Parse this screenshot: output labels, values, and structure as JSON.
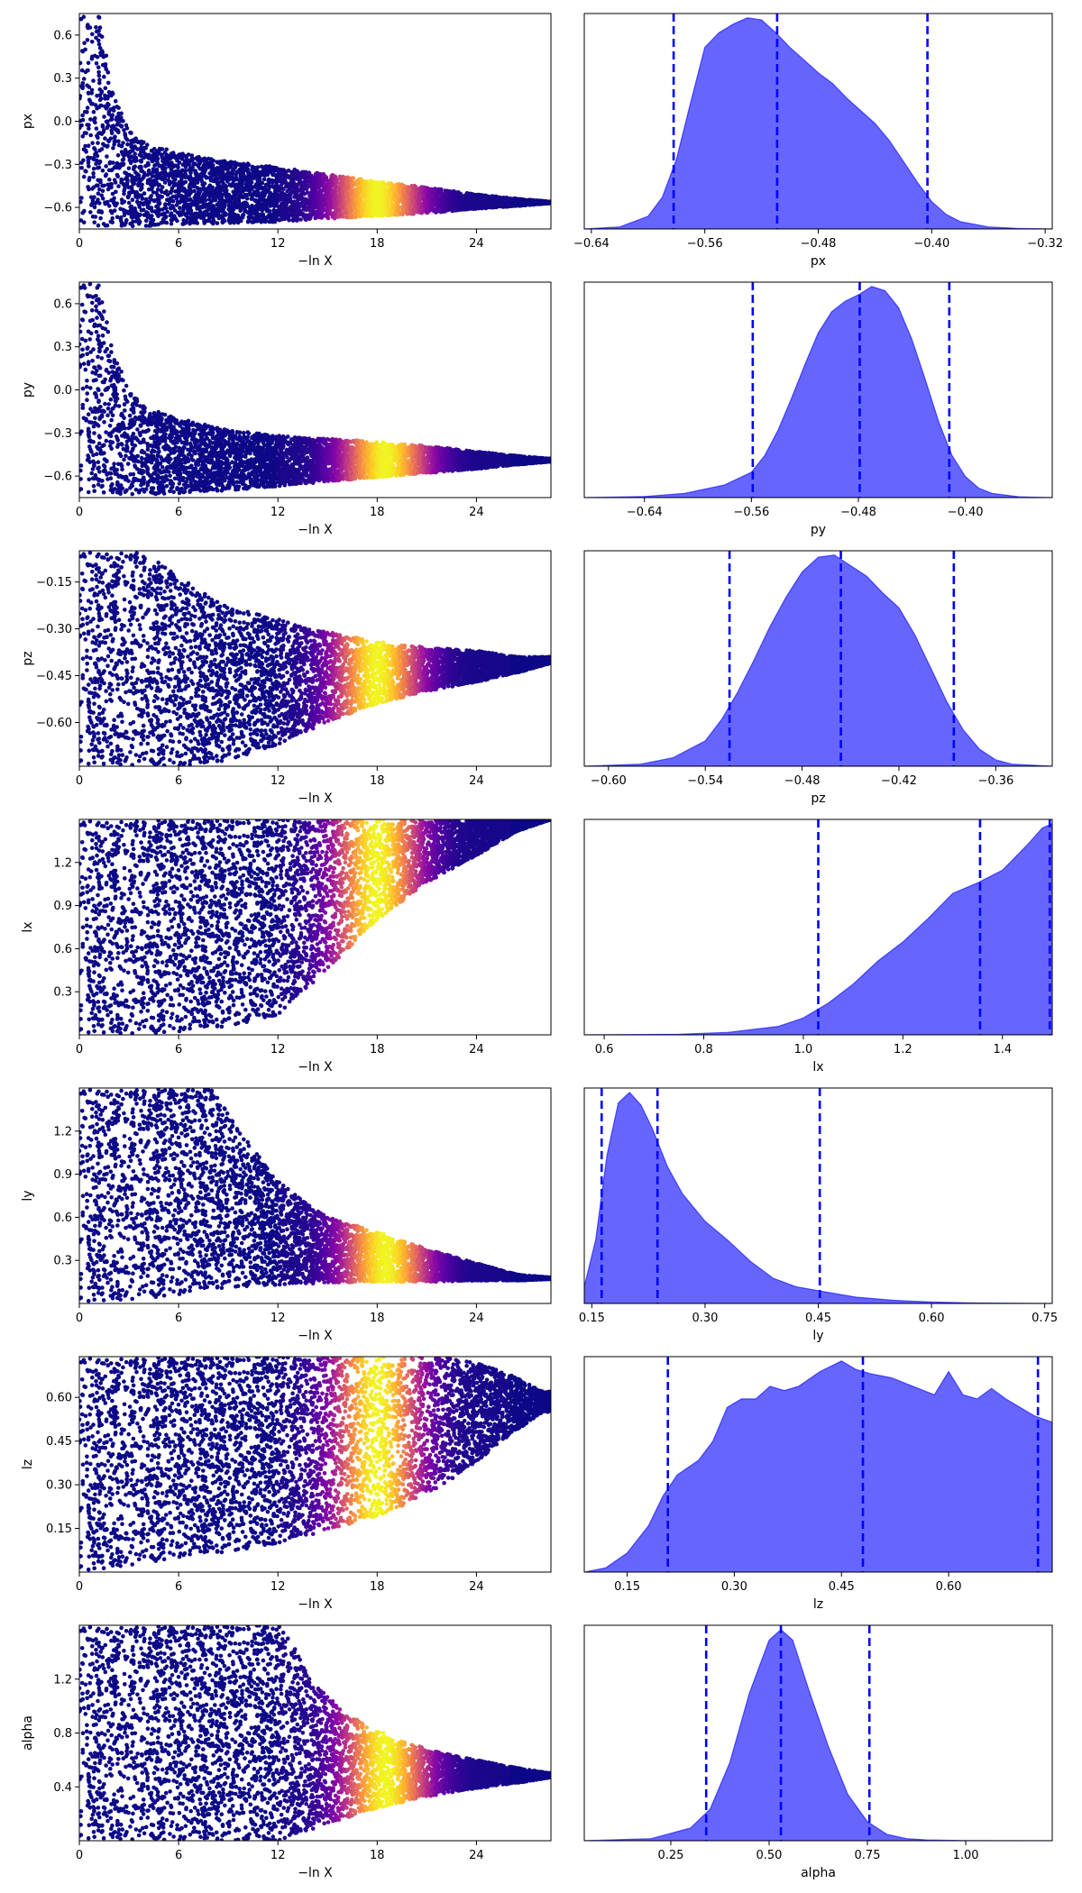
{
  "chart_data": [
    {
      "type": "scatter",
      "ylabel": "px",
      "xlabel": "−ln X",
      "xlim": [
        0,
        28.5
      ],
      "xticks": [
        "0",
        "6",
        "12",
        "18",
        "24"
      ],
      "xtick_values": [
        0,
        6,
        12,
        18,
        24
      ],
      "ylim": [
        -0.75,
        0.75
      ],
      "yticks": [
        "0.6",
        "0.3",
        "0.0",
        "−0.3",
        "−0.6"
      ],
      "ytick_values": [
        0.6,
        0.3,
        0.0,
        -0.3,
        -0.6
      ],
      "envelope": {
        "x": [
          0,
          0.6,
          1.2,
          2,
          3,
          4,
          6,
          9,
          12,
          15,
          18,
          21,
          24,
          26.5,
          28.5
        ],
        "upper": [
          0.75,
          0.75,
          0.75,
          0.2,
          -0.05,
          -0.15,
          -0.22,
          -0.28,
          -0.32,
          -0.37,
          -0.42,
          -0.46,
          -0.51,
          -0.54,
          -0.56
        ],
        "lower": [
          -0.73,
          -0.73,
          -0.73,
          -0.73,
          -0.73,
          -0.73,
          -0.72,
          -0.71,
          -0.7,
          -0.68,
          -0.66,
          -0.64,
          -0.61,
          -0.59,
          -0.57
        ]
      },
      "color_peak_x": 18,
      "colormap": "plasma"
    },
    {
      "type": "area",
      "xlabel": "px",
      "xlim": [
        -0.645,
        -0.315
      ],
      "xticks": [
        "−0.64",
        "−0.56",
        "−0.48",
        "−0.40",
        "−0.32"
      ],
      "xtick_values": [
        -0.64,
        -0.56,
        -0.48,
        -0.4,
        -0.32
      ],
      "quantiles": [
        -0.582,
        -0.509,
        -0.403
      ],
      "density": {
        "x": [
          -0.645,
          -0.62,
          -0.6,
          -0.59,
          -0.58,
          -0.57,
          -0.56,
          -0.55,
          -0.54,
          -0.53,
          -0.52,
          -0.51,
          -0.5,
          -0.49,
          -0.48,
          -0.47,
          -0.46,
          -0.45,
          -0.44,
          -0.43,
          -0.42,
          -0.41,
          -0.4,
          -0.39,
          -0.38,
          -0.36,
          -0.34,
          -0.315
        ],
        "y": [
          0,
          0.01,
          0.06,
          0.15,
          0.33,
          0.6,
          0.86,
          0.93,
          0.97,
          1.0,
          0.99,
          0.93,
          0.86,
          0.8,
          0.74,
          0.69,
          0.62,
          0.56,
          0.5,
          0.42,
          0.32,
          0.22,
          0.13,
          0.07,
          0.035,
          0.01,
          0.003,
          0
        ]
      }
    },
    {
      "type": "scatter",
      "ylabel": "py",
      "xlabel": "−ln X",
      "xlim": [
        0,
        28.5
      ],
      "xticks": [
        "0",
        "6",
        "12",
        "18",
        "24"
      ],
      "xtick_values": [
        0,
        6,
        12,
        18,
        24
      ],
      "ylim": [
        -0.75,
        0.75
      ],
      "yticks": [
        "0.6",
        "0.3",
        "0.0",
        "−0.3",
        "−0.6"
      ],
      "ytick_values": [
        0.6,
        0.3,
        0.0,
        -0.3,
        -0.6
      ],
      "envelope": {
        "x": [
          0,
          0.6,
          1.2,
          2,
          3,
          4,
          6,
          9,
          12,
          15,
          18,
          21,
          24,
          26.5,
          28.5
        ],
        "upper": [
          0.75,
          0.75,
          0.75,
          0.3,
          0.0,
          -0.12,
          -0.2,
          -0.28,
          -0.32,
          -0.34,
          -0.36,
          -0.39,
          -0.43,
          -0.46,
          -0.48
        ],
        "lower": [
          -0.73,
          -0.73,
          -0.73,
          -0.73,
          -0.73,
          -0.73,
          -0.72,
          -0.7,
          -0.67,
          -0.64,
          -0.61,
          -0.58,
          -0.55,
          -0.52,
          -0.5
        ]
      },
      "color_peak_x": 18.5,
      "colormap": "plasma"
    },
    {
      "type": "area",
      "xlabel": "py",
      "xlim": [
        -0.685,
        -0.335
      ],
      "xticks": [
        "−0.64",
        "−0.56",
        "−0.48",
        "−0.40"
      ],
      "xtick_values": [
        -0.64,
        -0.56,
        -0.48,
        -0.4
      ],
      "quantiles": [
        -0.559,
        -0.479,
        -0.412
      ],
      "density": {
        "x": [
          -0.685,
          -0.64,
          -0.61,
          -0.58,
          -0.56,
          -0.55,
          -0.54,
          -0.53,
          -0.52,
          -0.51,
          -0.5,
          -0.49,
          -0.48,
          -0.47,
          -0.46,
          -0.45,
          -0.44,
          -0.43,
          -0.42,
          -0.41,
          -0.4,
          -0.39,
          -0.38,
          -0.36,
          -0.335
        ],
        "y": [
          0,
          0.005,
          0.02,
          0.06,
          0.12,
          0.2,
          0.32,
          0.47,
          0.63,
          0.78,
          0.88,
          0.93,
          0.96,
          1.0,
          0.98,
          0.9,
          0.75,
          0.56,
          0.36,
          0.2,
          0.1,
          0.045,
          0.02,
          0.004,
          0
        ]
      }
    },
    {
      "type": "scatter",
      "ylabel": "pz",
      "xlabel": "−ln X",
      "xlim": [
        0,
        28.5
      ],
      "xticks": [
        "0",
        "6",
        "12",
        "18",
        "24"
      ],
      "xtick_values": [
        0,
        6,
        12,
        18,
        24
      ],
      "ylim": [
        -0.74,
        -0.05
      ],
      "yticks": [
        "−0.15",
        "−0.30",
        "−0.45",
        "−0.60"
      ],
      "ytick_values": [
        -0.15,
        -0.3,
        -0.45,
        -0.6
      ],
      "envelope": {
        "x": [
          0,
          1,
          2,
          3.5,
          5,
          7,
          9,
          12,
          15,
          18,
          21,
          24,
          26.5,
          28.5
        ],
        "upper": [
          -0.05,
          -0.05,
          -0.05,
          -0.05,
          -0.09,
          -0.17,
          -0.23,
          -0.27,
          -0.31,
          -0.34,
          -0.36,
          -0.37,
          -0.39,
          -0.39
        ],
        "lower": [
          -0.74,
          -0.74,
          -0.74,
          -0.74,
          -0.74,
          -0.74,
          -0.72,
          -0.67,
          -0.6,
          -0.54,
          -0.5,
          -0.47,
          -0.44,
          -0.41
        ]
      },
      "color_peak_x": 18,
      "colormap": "plasma"
    },
    {
      "type": "area",
      "xlabel": "pz",
      "xlim": [
        -0.615,
        -0.325
      ],
      "xticks": [
        "−0.60",
        "−0.54",
        "−0.48",
        "−0.42",
        "−0.36"
      ],
      "xtick_values": [
        -0.6,
        -0.54,
        -0.48,
        -0.42,
        -0.36
      ],
      "quantiles": [
        -0.525,
        -0.456,
        -0.386
      ],
      "density": {
        "x": [
          -0.615,
          -0.58,
          -0.56,
          -0.54,
          -0.53,
          -0.52,
          -0.51,
          -0.5,
          -0.49,
          -0.48,
          -0.47,
          -0.46,
          -0.45,
          -0.44,
          -0.43,
          -0.42,
          -0.41,
          -0.4,
          -0.39,
          -0.38,
          -0.37,
          -0.36,
          -0.35,
          -0.325
        ],
        "y": [
          0,
          0.01,
          0.04,
          0.12,
          0.22,
          0.35,
          0.5,
          0.66,
          0.8,
          0.92,
          0.99,
          1.0,
          0.95,
          0.9,
          0.82,
          0.75,
          0.62,
          0.46,
          0.3,
          0.17,
          0.08,
          0.03,
          0.01,
          0
        ]
      }
    },
    {
      "type": "scatter",
      "ylabel": "lx",
      "xlabel": "−ln X",
      "xlim": [
        0,
        28.5
      ],
      "xticks": [
        "0",
        "6",
        "12",
        "18",
        "24"
      ],
      "xtick_values": [
        0,
        6,
        12,
        18,
        24
      ],
      "ylim": [
        0.0,
        1.5
      ],
      "yticks": [
        "1.2",
        "0.9",
        "0.6",
        "0.3"
      ],
      "ytick_values": [
        1.2,
        0.9,
        0.6,
        0.3
      ],
      "envelope": {
        "x": [
          0,
          1,
          3,
          6,
          9,
          12,
          15,
          18,
          21,
          24,
          26.5,
          28.5
        ],
        "upper": [
          1.5,
          1.5,
          1.5,
          1.5,
          1.5,
          1.5,
          1.5,
          1.5,
          1.5,
          1.5,
          1.5,
          1.5
        ],
        "lower": [
          0.0,
          0.0,
          0.0,
          0.02,
          0.06,
          0.14,
          0.45,
          0.8,
          1.06,
          1.25,
          1.42,
          1.5
        ]
      },
      "color_peak_x": 18,
      "colormap": "plasma"
    },
    {
      "type": "area",
      "xlabel": "lx",
      "xlim": [
        0.56,
        1.5
      ],
      "xticks": [
        "0.6",
        "0.8",
        "1.0",
        "1.2",
        "1.4"
      ],
      "xtick_values": [
        0.6,
        0.8,
        1.0,
        1.2,
        1.4
      ],
      "quantiles": [
        1.03,
        1.355,
        1.495
      ],
      "density": {
        "x": [
          0.56,
          0.75,
          0.85,
          0.95,
          1.0,
          1.05,
          1.1,
          1.15,
          1.2,
          1.25,
          1.3,
          1.35,
          1.4,
          1.45,
          1.48,
          1.5
        ],
        "y": [
          0,
          0.003,
          0.012,
          0.04,
          0.08,
          0.15,
          0.24,
          0.35,
          0.44,
          0.55,
          0.67,
          0.72,
          0.78,
          0.9,
          0.98,
          1.0
        ]
      }
    },
    {
      "type": "scatter",
      "ylabel": "ly",
      "xlabel": "−ln X",
      "xlim": [
        0,
        28.5
      ],
      "xticks": [
        "0",
        "6",
        "12",
        "18",
        "24"
      ],
      "xtick_values": [
        0,
        6,
        12,
        18,
        24
      ],
      "ylim": [
        0.0,
        1.5
      ],
      "yticks": [
        "1.2",
        "0.9",
        "0.6",
        "0.3"
      ],
      "ytick_values": [
        1.2,
        0.9,
        0.6,
        0.3
      ],
      "envelope": {
        "x": [
          0,
          1,
          3,
          6,
          8,
          10,
          12,
          15,
          18,
          21,
          24,
          26.5,
          28.5
        ],
        "upper": [
          1.5,
          1.5,
          1.5,
          1.5,
          1.5,
          1.15,
          0.85,
          0.6,
          0.5,
          0.38,
          0.28,
          0.2,
          0.18
        ],
        "lower": [
          0.0,
          0.0,
          0.02,
          0.06,
          0.1,
          0.12,
          0.13,
          0.14,
          0.15,
          0.15,
          0.16,
          0.16,
          0.17
        ]
      },
      "color_peak_x": 18.5,
      "colormap": "plasma"
    },
    {
      "type": "area",
      "xlabel": "ly",
      "xlim": [
        0.14,
        0.76
      ],
      "xticks": [
        "0.15",
        "0.30",
        "0.45",
        "0.60",
        "0.75"
      ],
      "xtick_values": [
        0.15,
        0.3,
        0.45,
        0.6,
        0.75
      ],
      "quantiles": [
        0.163,
        0.237,
        0.452
      ],
      "density": {
        "x": [
          0.14,
          0.155,
          0.17,
          0.185,
          0.2,
          0.215,
          0.23,
          0.25,
          0.27,
          0.3,
          0.33,
          0.36,
          0.39,
          0.42,
          0.45,
          0.5,
          0.55,
          0.6,
          0.65,
          0.76
        ],
        "y": [
          0.08,
          0.3,
          0.7,
          0.95,
          1.0,
          0.94,
          0.83,
          0.65,
          0.52,
          0.39,
          0.3,
          0.2,
          0.12,
          0.08,
          0.06,
          0.03,
          0.015,
          0.007,
          0.003,
          0
        ]
      }
    },
    {
      "type": "scatter",
      "ylabel": "lz",
      "xlabel": "−ln X",
      "xlim": [
        0,
        28.5
      ],
      "xticks": [
        "0",
        "6",
        "12",
        "18",
        "24"
      ],
      "xtick_values": [
        0,
        6,
        12,
        18,
        24
      ],
      "ylim": [
        0.0,
        0.74
      ],
      "yticks": [
        "0.60",
        "0.45",
        "0.30",
        "0.15"
      ],
      "ytick_values": [
        0.6,
        0.45,
        0.3,
        0.15
      ],
      "envelope": {
        "x": [
          0,
          1,
          3,
          6,
          9,
          12,
          15,
          18,
          20,
          22,
          24,
          26,
          28
        ],
        "upper": [
          0.74,
          0.74,
          0.74,
          0.74,
          0.74,
          0.74,
          0.74,
          0.74,
          0.74,
          0.74,
          0.72,
          0.68,
          0.62
        ],
        "lower": [
          0.0,
          0.0,
          0.02,
          0.05,
          0.07,
          0.1,
          0.14,
          0.19,
          0.24,
          0.3,
          0.38,
          0.47,
          0.55
        ]
      },
      "color_peak_x": 18,
      "colormap": "plasma"
    },
    {
      "type": "area",
      "xlabel": "lz",
      "xlim": [
        0.09,
        0.745
      ],
      "xticks": [
        "0.15",
        "0.30",
        "0.45",
        "0.60"
      ],
      "xtick_values": [
        0.15,
        0.3,
        0.45,
        0.6
      ],
      "quantiles": [
        0.207,
        0.48,
        0.725
      ],
      "density": {
        "x": [
          0.09,
          0.12,
          0.15,
          0.18,
          0.2,
          0.22,
          0.25,
          0.27,
          0.29,
          0.31,
          0.33,
          0.35,
          0.37,
          0.39,
          0.42,
          0.45,
          0.47,
          0.49,
          0.52,
          0.55,
          0.58,
          0.6,
          0.62,
          0.64,
          0.66,
          0.68,
          0.7,
          0.72,
          0.745
        ],
        "y": [
          0,
          0.02,
          0.09,
          0.22,
          0.36,
          0.46,
          0.53,
          0.62,
          0.78,
          0.82,
          0.82,
          0.88,
          0.86,
          0.88,
          0.95,
          1.0,
          0.96,
          0.94,
          0.92,
          0.88,
          0.84,
          0.95,
          0.84,
          0.82,
          0.87,
          0.82,
          0.78,
          0.74,
          0.71
        ]
      }
    },
    {
      "type": "scatter",
      "ylabel": "alpha",
      "xlabel": "−ln X",
      "xlim": [
        0,
        28.5
      ],
      "xticks": [
        "0",
        "6",
        "12",
        "18",
        "24"
      ],
      "xtick_values": [
        0,
        6,
        12,
        18,
        24
      ],
      "ylim": [
        0.0,
        1.6
      ],
      "yticks": [
        "1.2",
        "0.8",
        "0.4"
      ],
      "ytick_values": [
        1.2,
        0.8,
        0.4
      ],
      "envelope": {
        "x": [
          0,
          2,
          6,
          10,
          12,
          13,
          14,
          16,
          18,
          20,
          22,
          24,
          26.5,
          28.5
        ],
        "upper": [
          1.6,
          1.6,
          1.6,
          1.6,
          1.6,
          1.45,
          1.2,
          0.95,
          0.82,
          0.72,
          0.65,
          0.6,
          0.54,
          0.5
        ],
        "lower": [
          0.0,
          0.0,
          0.0,
          0.0,
          0.0,
          0.03,
          0.08,
          0.16,
          0.24,
          0.3,
          0.35,
          0.39,
          0.43,
          0.47
        ]
      },
      "color_peak_x": 18.5,
      "colormap": "plasma"
    },
    {
      "type": "area",
      "xlabel": "alpha",
      "xlim": [
        0.03,
        1.22
      ],
      "xticks": [
        "0.25",
        "0.50",
        "0.75",
        "1.00"
      ],
      "xtick_values": [
        0.25,
        0.5,
        0.75,
        1.0
      ],
      "quantiles": [
        0.34,
        0.53,
        0.755
      ],
      "density": {
        "x": [
          0.03,
          0.2,
          0.3,
          0.35,
          0.4,
          0.45,
          0.5,
          0.53,
          0.56,
          0.6,
          0.65,
          0.7,
          0.75,
          0.8,
          0.85,
          0.9,
          1.0,
          1.22
        ],
        "y": [
          0,
          0.01,
          0.06,
          0.15,
          0.37,
          0.7,
          0.95,
          1.0,
          0.95,
          0.72,
          0.45,
          0.22,
          0.09,
          0.03,
          0.01,
          0.004,
          0.001,
          0
        ]
      }
    }
  ]
}
